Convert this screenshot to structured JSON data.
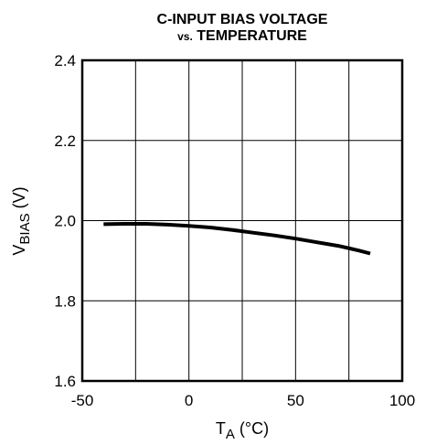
{
  "chart_data": {
    "type": "line",
    "title_line1": "C-INPUT BIAS VOLTAGE",
    "title_line2_prefix": "vs.",
    "title_line2_rest": " TEMPERATURE",
    "xlabel_main": "T",
    "xlabel_sub": "A",
    "xlabel_unit": " (°C)",
    "ylabel_main": "V",
    "ylabel_sub": "BIAS",
    "ylabel_unit": " (V)",
    "xlim": [
      -50,
      100
    ],
    "ylim": [
      1.6,
      2.4
    ],
    "grid": true,
    "x_ticks": [
      -50,
      0,
      50,
      100
    ],
    "x_tick_labels": [
      "-50",
      "0",
      "50",
      "100"
    ],
    "x_grid": [
      -50,
      -25,
      0,
      25,
      50,
      75,
      100
    ],
    "y_ticks": [
      1.6,
      1.8,
      2.0,
      2.2,
      2.4
    ],
    "y_tick_labels": [
      "1.6",
      "1.8",
      "2.0",
      "2.2",
      "2.4"
    ],
    "series": [
      {
        "x": [
          -40,
          -30,
          -20,
          -10,
          0,
          10,
          20,
          30,
          40,
          50,
          60,
          70,
          80,
          85
        ],
        "y": [
          1.991,
          1.992,
          1.992,
          1.99,
          1.987,
          1.983,
          1.977,
          1.97,
          1.963,
          1.955,
          1.946,
          1.937,
          1.925,
          1.918
        ]
      }
    ]
  }
}
